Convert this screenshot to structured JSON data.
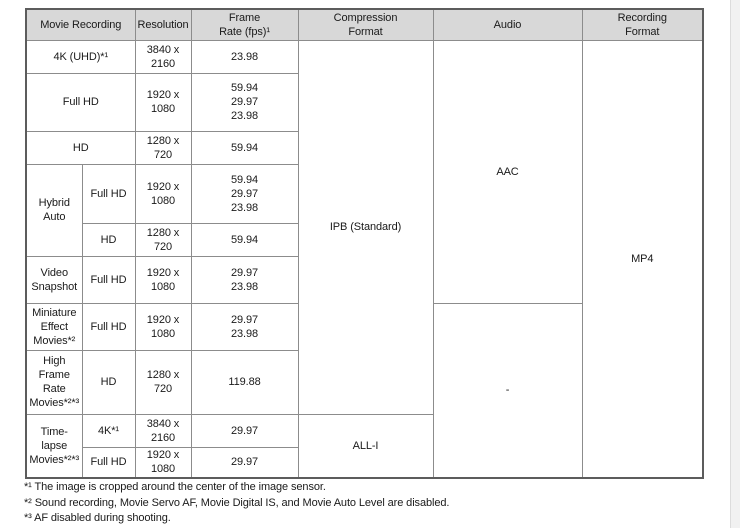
{
  "table": {
    "header": {
      "movie_recording": "Movie Recording",
      "resolution": "Resolution",
      "frame_rate": "Frame\nRate (fps)¹",
      "compression_format": "Compression\nFormat",
      "audio": "Audio",
      "recording_format": "Recording\nFormat"
    },
    "rows": [
      {
        "group": "4K (UHD)*¹",
        "res": "3840 x\n2160",
        "fps": "23.98"
      },
      {
        "group": "Full HD",
        "res": "1920 x\n1080",
        "fps": "59.94\n29.97\n23.98"
      },
      {
        "group": "HD",
        "res": "1280 x\n720",
        "fps": "59.94"
      },
      {
        "group": "Hybrid\nAuto",
        "sub": "Full HD",
        "res": "1920 x\n1080",
        "fps": "59.94\n29.97\n23.98"
      },
      {
        "sub": "HD",
        "res": "1280 x\n720",
        "fps": "59.94"
      },
      {
        "group": "Video\nSnapshot",
        "sub": "Full HD",
        "res": "1920 x\n1080",
        "fps": "29.97\n23.98"
      },
      {
        "group": "Miniature\nEffect\nMovies*²",
        "sub": "Full HD",
        "res": "1920 x\n1080",
        "fps": "29.97\n23.98"
      },
      {
        "group": "High\nFrame\nRate\nMovies*²*³",
        "sub": "HD",
        "res": "1280 x\n720",
        "fps": "119.88"
      },
      {
        "group": "Time-lapse\nMovies*²*³",
        "sub": "4K*¹",
        "res": "3840 x\n2160",
        "fps": "29.97"
      },
      {
        "sub": "Full HD",
        "res": "1920 x\n1080",
        "fps": "29.97"
      }
    ],
    "merged": {
      "compression_standard": "IPB (Standard)",
      "compression_timelapse": "ALL-I",
      "audio_enabled": "AAC",
      "audio_disabled": "-",
      "recording_format": "MP4"
    }
  },
  "footnotes": [
    "*¹ The image is cropped around the center of the image sensor.",
    "*² Sound recording, Movie Servo AF, Movie Digital IS, and Movie Auto Level are disabled.",
    "*³ AF disabled during shooting."
  ],
  "colors": {
    "header_bg": "#d8d8d8",
    "border": "#8c8c8c",
    "outer_border": "#5c5c5c"
  }
}
